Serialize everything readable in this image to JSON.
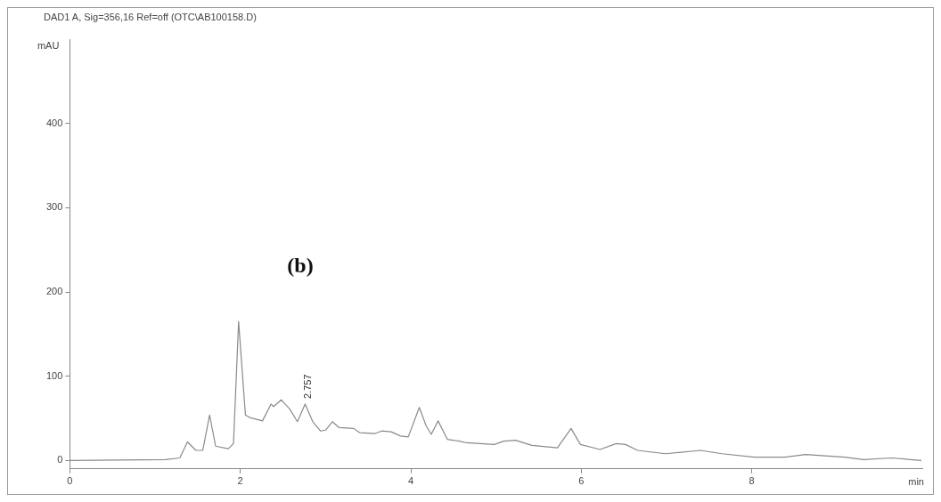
{
  "chart_data": {
    "type": "line",
    "title": "DAD1 A, Sig=356,16 Ref=off (OTC\\AB100158.D)",
    "xlabel": "min",
    "ylabel": "mAU",
    "annotations": [
      "(b)",
      {
        "text": "2.757",
        "x": 2.757,
        "y": 67
      }
    ],
    "x": [
      0,
      1.12,
      1.29,
      1.38,
      1.48,
      1.56,
      1.64,
      1.71,
      1.86,
      1.92,
      1.98,
      2.06,
      2.11,
      2.26,
      2.36,
      2.39,
      2.48,
      2.58,
      2.67,
      2.76,
      2.85,
      2.94,
      3.0,
      3.08,
      3.16,
      3.33,
      3.4,
      3.58,
      3.66,
      3.77,
      3.88,
      3.97,
      4.1,
      4.18,
      4.24,
      4.32,
      4.43,
      4.57,
      4.65,
      4.98,
      5.09,
      5.23,
      5.42,
      5.72,
      5.88,
      5.99,
      6.22,
      6.41,
      6.52,
      6.66,
      6.99,
      7.4,
      7.65,
      8.03,
      8.39,
      8.63,
      9.09,
      9.31,
      9.64,
      9.99
    ],
    "series": [
      {
        "color": "#8a8a8a",
        "values": [
          0,
          1,
          3,
          22,
          12,
          12,
          54,
          17,
          14,
          20,
          165,
          54,
          51,
          47,
          67,
          64,
          72,
          61,
          46,
          67,
          46,
          35,
          36,
          46,
          39,
          38,
          33,
          32,
          35,
          34,
          29,
          28,
          63,
          41,
          31,
          47,
          25,
          23,
          21,
          19,
          23,
          24,
          18,
          15,
          38,
          19,
          13,
          20,
          19,
          12,
          8,
          12,
          8,
          4,
          4,
          7,
          4,
          1,
          3,
          0
        ]
      }
    ],
    "xlim": [
      0,
      10
    ],
    "ylim": [
      -10,
      500
    ],
    "xticks": [
      0,
      2,
      4,
      6,
      8
    ],
    "yticks": [
      0,
      100,
      200,
      300,
      400
    ],
    "grid": false,
    "legend": false,
    "marker": "none",
    "line_style": "solid"
  }
}
